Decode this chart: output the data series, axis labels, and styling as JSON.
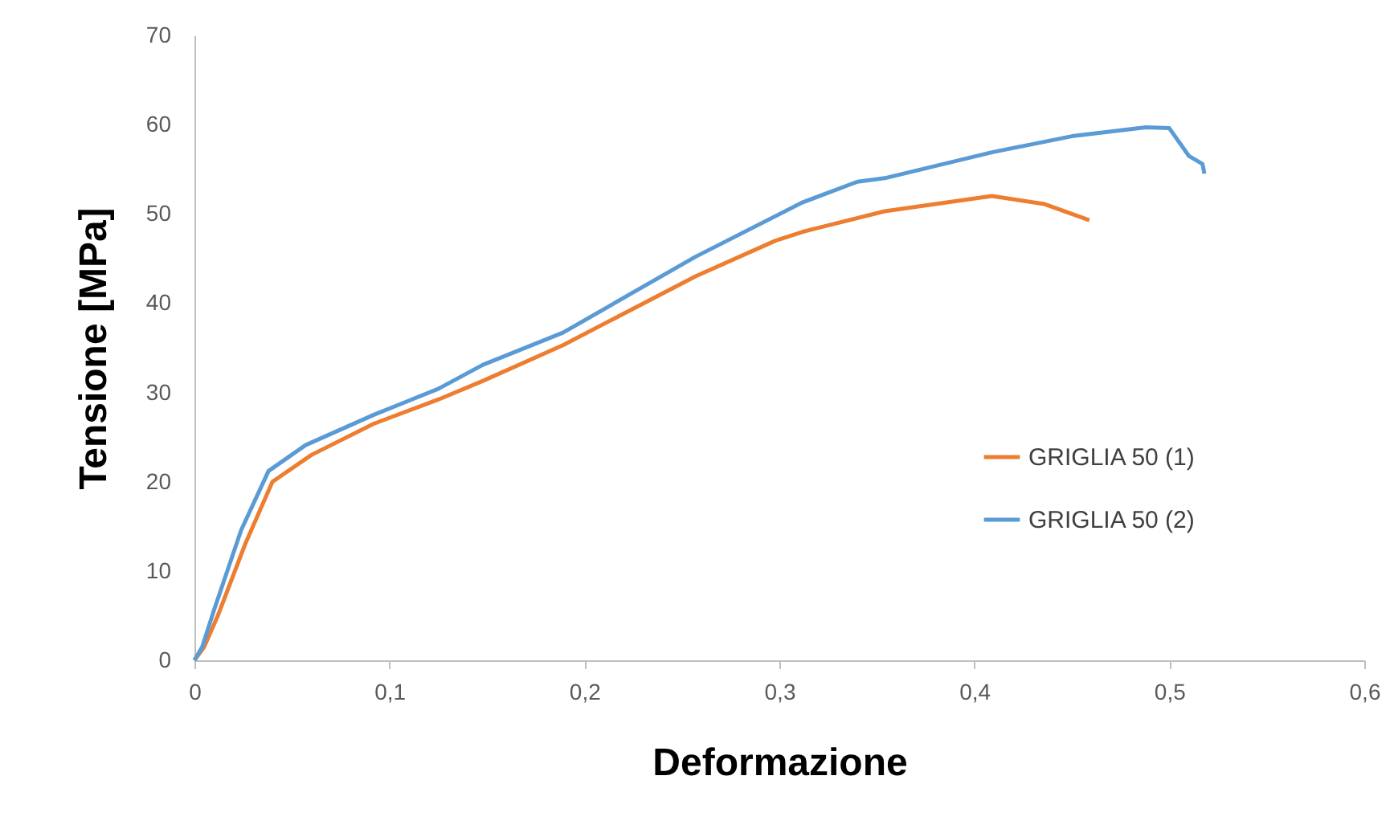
{
  "chart_data": {
    "type": "line",
    "xlabel": "Deformazione",
    "ylabel": "Tensione [MPa]",
    "xlim": [
      0,
      0.6
    ],
    "ylim": [
      0,
      70
    ],
    "xticks": [
      0,
      {
        "value": 0.1,
        "label": "0,1"
      },
      {
        "value": 0.2,
        "label": "0,2"
      },
      {
        "value": 0.3,
        "label": "0,3"
      },
      {
        "value": 0.4,
        "label": "0,4"
      },
      {
        "value": 0.5,
        "label": "0,5"
      },
      {
        "value": 0.6,
        "label": "0,6"
      }
    ],
    "yticks": [
      0,
      10,
      20,
      30,
      40,
      50,
      60,
      70
    ],
    "grid": false,
    "legend": "right",
    "line_style": "solid",
    "marker": "none",
    "series": [
      {
        "name": "GRIGLIA 50 (1)",
        "color": "#ed7d31",
        "x": [
          0,
          0.005,
          0.012,
          0.026,
          0.04,
          0.06,
          0.092,
          0.125,
          0.148,
          0.189,
          0.257,
          0.298,
          0.312,
          0.354,
          0.409,
          0.436,
          0.459
        ],
        "values": [
          0,
          1.5,
          5,
          13,
          20,
          23,
          26.5,
          29.2,
          31.3,
          35.3,
          43,
          47,
          48,
          50.3,
          52,
          51.1,
          49.3
        ]
      },
      {
        "name": "GRIGLIA 50 (2)",
        "color": "#5b9bd5",
        "x": [
          0,
          0.004,
          0.01,
          0.024,
          0.038,
          0.057,
          0.092,
          0.125,
          0.148,
          0.189,
          0.257,
          0.312,
          0.34,
          0.354,
          0.409,
          0.45,
          0.488,
          0.5,
          0.51,
          0.517,
          0.518
        ],
        "values": [
          0,
          1.5,
          5.6,
          14.6,
          21.2,
          24.1,
          27.5,
          30.4,
          33.1,
          36.7,
          45.2,
          51.3,
          53.6,
          54,
          56.9,
          58.7,
          59.7,
          59.6,
          56.5,
          55.6,
          54.5
        ]
      }
    ]
  }
}
